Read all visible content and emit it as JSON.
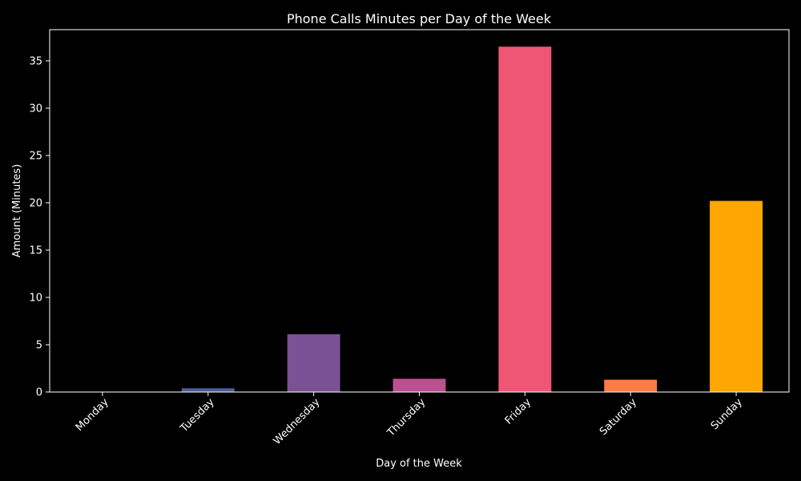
{
  "chart_data": {
    "type": "bar",
    "title": "Phone Calls Minutes per Day of the Week",
    "xlabel": "Day of the Week",
    "ylabel": "Amount (Minutes)",
    "categories": [
      "Monday",
      "Tuesday",
      "Wednesday",
      "Thursday",
      "Friday",
      "Saturday",
      "Sunday"
    ],
    "values": [
      0,
      0.4,
      6.1,
      1.4,
      36.5,
      1.3,
      20.2
    ],
    "colors": [
      "#2f4b7c",
      "#4d5f96",
      "#7a5195",
      "#bc5090",
      "#ef5675",
      "#ff7c43",
      "#ffa600"
    ],
    "ylim": [
      0,
      38.3
    ],
    "yticks": [
      0,
      5,
      10,
      15,
      20,
      25,
      30,
      35
    ],
    "grid": false,
    "legend": "none",
    "background": "#000000",
    "foreground": "#ffffff"
  }
}
